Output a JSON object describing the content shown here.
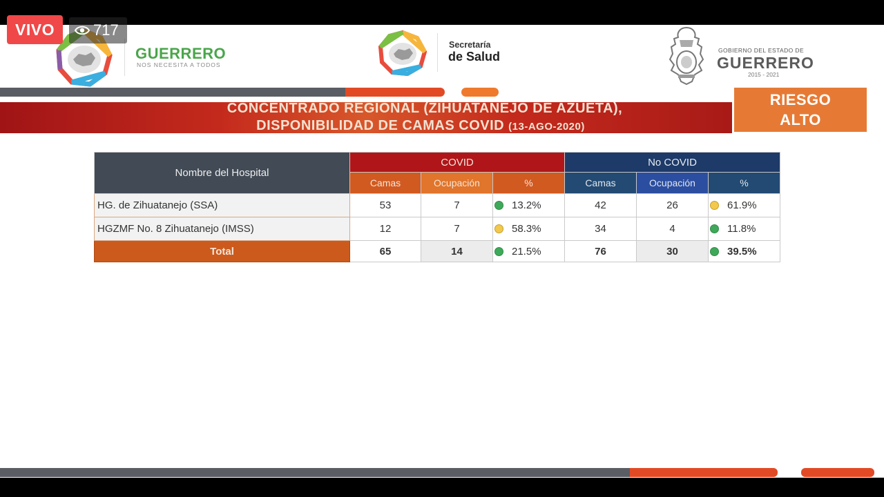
{
  "live": {
    "badge": "VIVO",
    "viewers": "717"
  },
  "header": {
    "guerrero_word": "GUERRERO",
    "guerrero_tagline": "NOS NECESITA A TODOS",
    "salud_small": "Secretaría",
    "salud_big": "de Salud",
    "gob_small": "GOBIERNO DEL ESTADO DE",
    "gob_big": "GUERRERO",
    "gob_years": "2015 - 2021"
  },
  "title": {
    "line1": "CONCENTRADO REGIONAL (ZIHUATANEJO DE AZUETA),",
    "line2": "DISPONIBILIDAD DE CAMAS COVID",
    "date": "(13-AGO-2020)"
  },
  "risk": {
    "line1": "RIESGO",
    "line2": "ALTO"
  },
  "table": {
    "name_header": "Nombre del Hospital",
    "covid_header": "COVID",
    "nocovid_header": "No COVID",
    "sub": {
      "camas": "Camas",
      "ocupacion": "Ocupación",
      "pct": "%"
    },
    "rows": [
      {
        "name": "HG. de Zihuatanejo (SSA)",
        "c_camas": "53",
        "c_ocup": "7",
        "c_pct": "13.2%",
        "c_status": "green",
        "n_camas": "42",
        "n_ocup": "26",
        "n_pct": "61.9%",
        "n_status": "yellow"
      },
      {
        "name": "HGZMF No. 8 Zihuatanejo (IMSS)",
        "c_camas": "12",
        "c_ocup": "7",
        "c_pct": "58.3%",
        "c_status": "yellow",
        "n_camas": "34",
        "n_ocup": "4",
        "n_pct": "11.8%",
        "n_status": "green"
      }
    ],
    "total": {
      "label": "Total",
      "c_camas": "65",
      "c_ocup": "14",
      "c_pct": "21.5%",
      "c_status": "green",
      "n_camas": "76",
      "n_ocup": "30",
      "n_pct": "39.5%",
      "n_status": "green"
    }
  },
  "colors": {
    "accent_red": "#b01619",
    "accent_orange": "#e67a35",
    "accent_navy": "#1d3a68",
    "brand_green": "#49a64a"
  }
}
